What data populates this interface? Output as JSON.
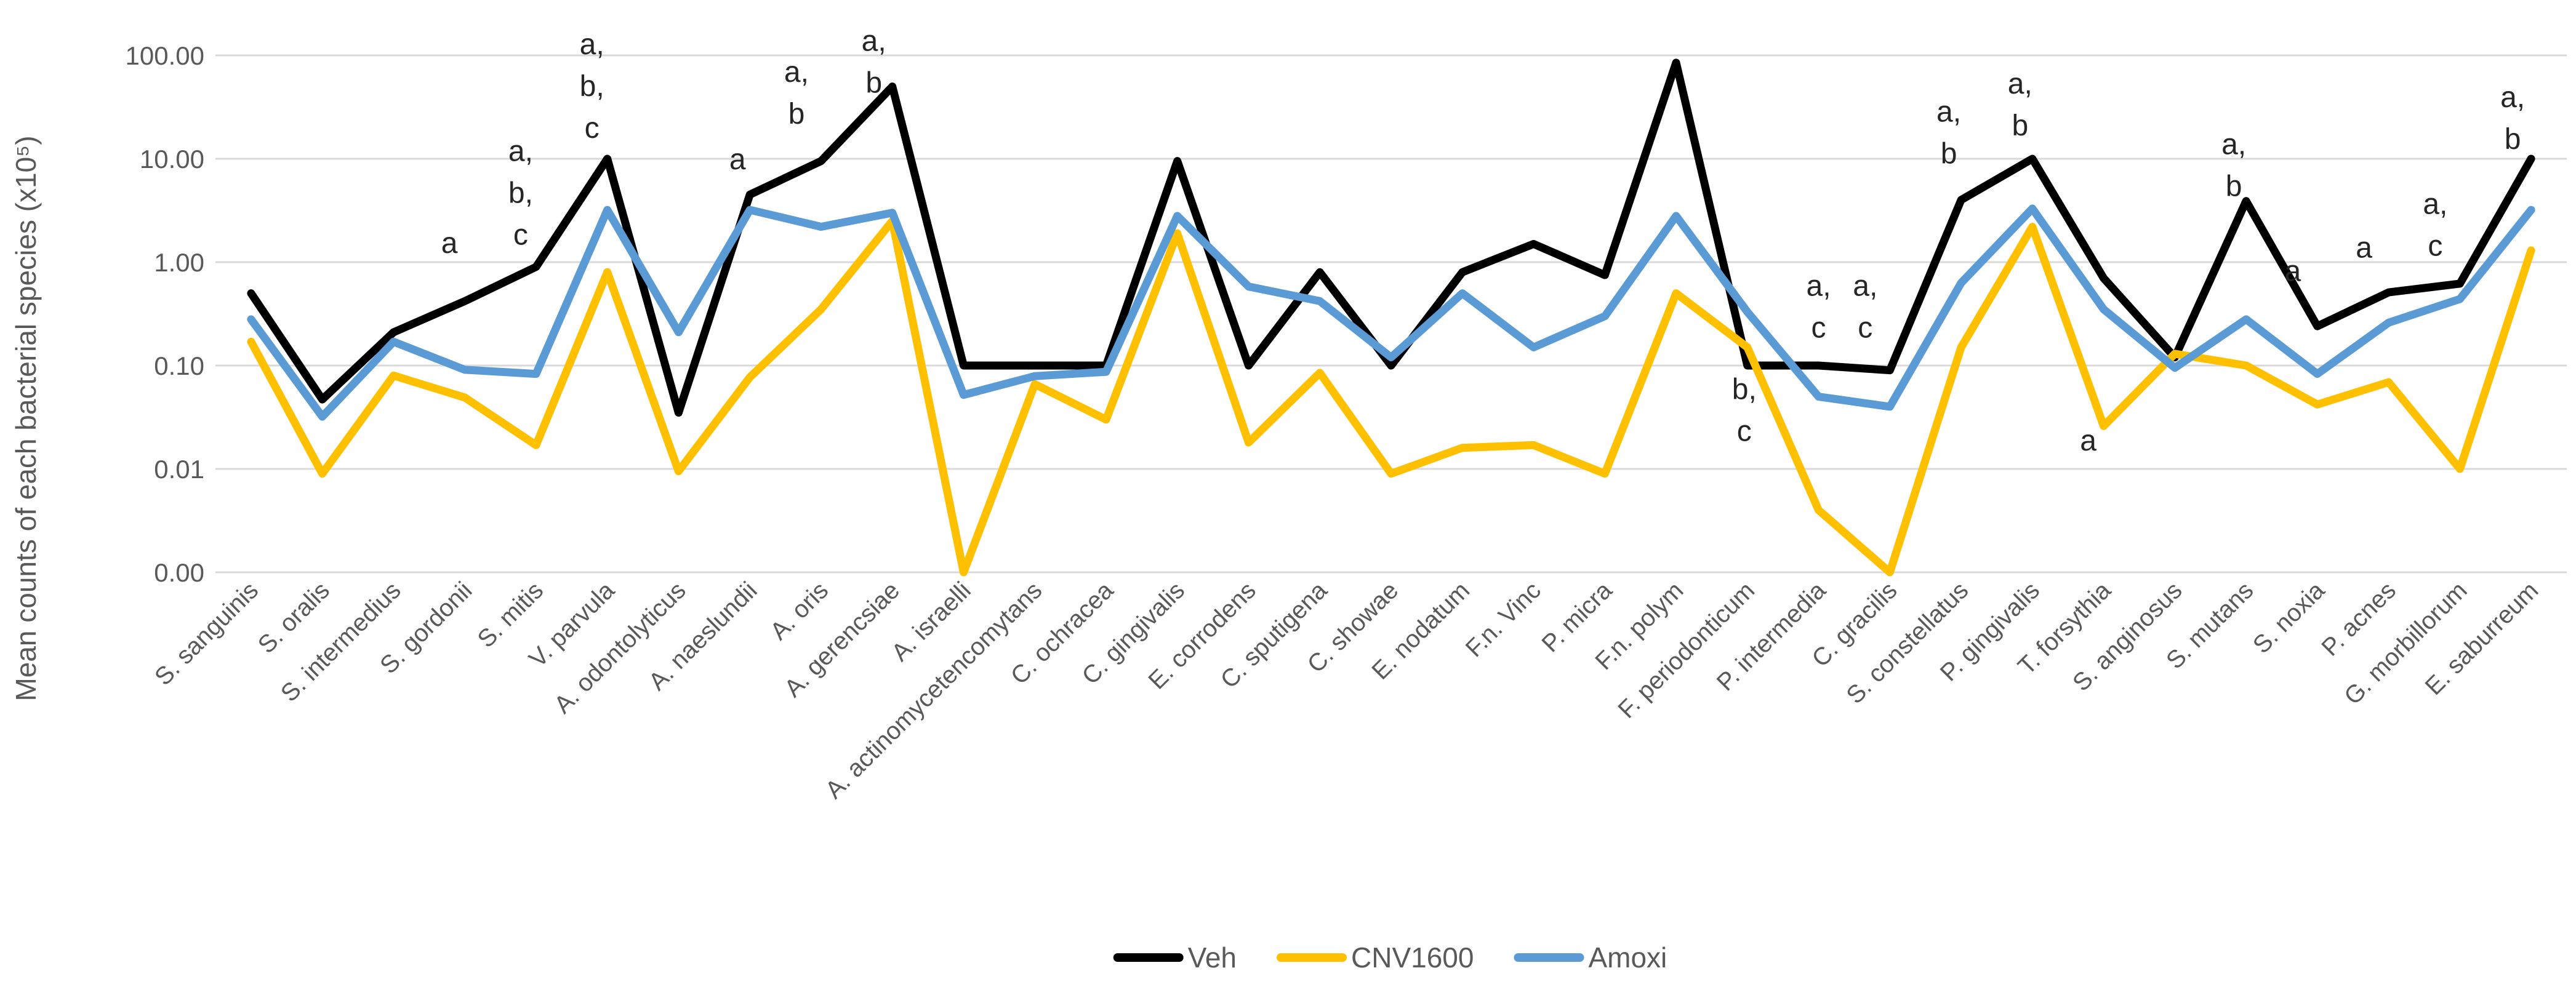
{
  "chart_data": {
    "type": "line",
    "title": "",
    "y_axis": {
      "title": "Mean counts of each bacterial species (x10⁵)",
      "scale": "log",
      "ylim": [
        0.001,
        100
      ],
      "ticks": [
        {
          "label": "100.00",
          "value": 100
        },
        {
          "label": "10.00",
          "value": 10
        },
        {
          "label": "1.00",
          "value": 1
        },
        {
          "label": "0.10",
          "value": 0.1
        },
        {
          "label": "0.01",
          "value": 0.01
        },
        {
          "label": "0.00",
          "value": 0.001
        }
      ]
    },
    "grid": true,
    "grid_color": "#d9d9d9",
    "legend_position": "bottom",
    "categories": [
      "S. sanguinis",
      "S. oralis",
      "S. intermedius",
      "S. gordonii",
      "S. mitis",
      "V. parvula",
      "A. odontolyticus",
      "A. naeslundii",
      "A. oris",
      "A. gerencsiae",
      "A. israelli",
      "A. actinomycetencomytans",
      "C. ochracea",
      "C. gingivalis",
      "E. corrodens",
      "C. sputigena",
      "C. showae",
      "E. nodatum",
      "F.n. Vinc",
      "P. micra",
      "F.n. polym",
      "F. periodonticum",
      "P. intermedia",
      "C. gracilis",
      "S. constellatus",
      "P. gingivalis",
      "T. forsythia",
      "S. anginosus",
      "S. mutans",
      "S. noxia",
      "P. acnes",
      "G. morbillorum",
      "E. saburreum"
    ],
    "series": [
      {
        "name": "Veh",
        "color": "#000000",
        "values": [
          0.5,
          0.047,
          0.21,
          0.42,
          0.9,
          10,
          0.035,
          4.5,
          9.5,
          50,
          0.1,
          0.1,
          0.1,
          9.5,
          0.1,
          0.8,
          0.1,
          0.8,
          1.5,
          0.75,
          85,
          0.1,
          0.1,
          0.09,
          4,
          10,
          0.7,
          0.12,
          3.9,
          0.24,
          0.51,
          0.62,
          10
        ]
      },
      {
        "name": "CNV1600",
        "color": "#FFC000",
        "values": [
          0.17,
          0.009,
          0.08,
          0.049,
          0.017,
          0.8,
          0.0095,
          0.077,
          0.35,
          2.5,
          0.001,
          0.066,
          0.03,
          1.9,
          0.018,
          0.085,
          0.009,
          0.016,
          0.017,
          0.009,
          0.5,
          0.15,
          0.004,
          0.001,
          0.15,
          2.2,
          0.026,
          0.13,
          0.1,
          0.042,
          0.069,
          0.01,
          1.3
        ]
      },
      {
        "name": "Amoxi",
        "color": "#5B9BD5",
        "values": [
          0.28,
          0.032,
          0.17,
          0.091,
          0.083,
          3.2,
          0.21,
          3.2,
          2.2,
          3.0,
          0.052,
          0.079,
          0.087,
          2.8,
          0.58,
          0.42,
          0.12,
          0.5,
          0.15,
          0.3,
          2.8,
          0.33,
          0.05,
          0.04,
          0.63,
          3.3,
          0.35,
          0.095,
          0.28,
          0.083,
          0.26,
          0.44,
          3.2
        ]
      }
    ],
    "annotations": [
      {
        "category": 4,
        "lines": [
          "a"
        ],
        "value": 1.55,
        "dx": -25
      },
      {
        "category": 5,
        "lines": [
          "a,",
          "b,",
          "c"
        ],
        "value": 12,
        "dx": -25
      },
      {
        "category": 6,
        "lines": [
          "a,",
          "b,",
          "c"
        ],
        "value": 130,
        "dx": -25
      },
      {
        "category": 8,
        "lines": [
          "a"
        ],
        "value": 10,
        "dx": -20
      },
      {
        "category": 9,
        "lines": [
          "a,",
          "b"
        ],
        "value": 70,
        "dx": -40
      },
      {
        "category": 10,
        "lines": [
          "a,",
          "b"
        ],
        "value": 140,
        "dx": -30
      },
      {
        "category": 22,
        "lines": [
          "b,",
          "c"
        ],
        "value": 0.06,
        "dx": -5
      },
      {
        "category": 23,
        "lines": [
          "a,",
          "c"
        ],
        "value": 0.6,
        "dx": 0
      },
      {
        "category": 24,
        "lines": [
          "a,",
          "c"
        ],
        "value": 0.6,
        "dx": -40
      },
      {
        "category": 25,
        "lines": [
          "a,",
          "b"
        ],
        "value": 29,
        "dx": -20
      },
      {
        "category": 26,
        "lines": [
          "a,",
          "b"
        ],
        "value": 54,
        "dx": -20
      },
      {
        "category": 27,
        "lines": [
          "a"
        ],
        "value": 0.019,
        "dx": -25
      },
      {
        "category": 29,
        "lines": [
          "a,",
          "b"
        ],
        "value": 14,
        "dx": -20
      },
      {
        "category": 30,
        "lines": [
          "a"
        ],
        "value": 0.83,
        "dx": -40
      },
      {
        "category": 31,
        "lines": [
          "a"
        ],
        "value": 1.4,
        "dx": -40
      },
      {
        "category": 32,
        "lines": [
          "a,",
          "c"
        ],
        "value": 3.7,
        "dx": -40
      },
      {
        "category": 33,
        "lines": [
          "a,",
          "b"
        ],
        "value": 40,
        "dx": -30
      }
    ]
  }
}
